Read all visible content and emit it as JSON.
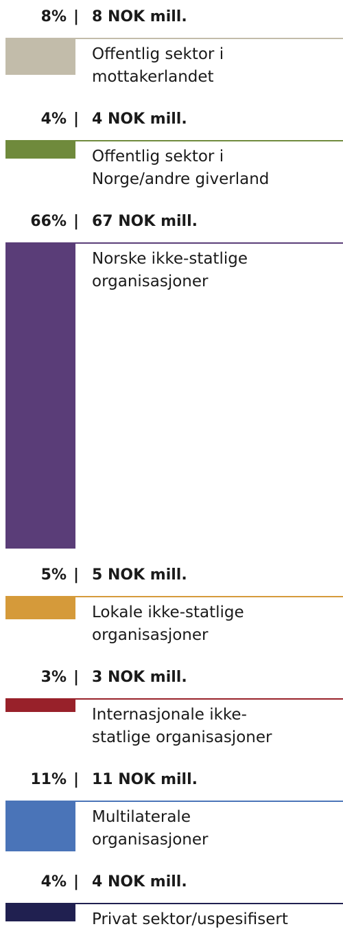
{
  "chart_data": {
    "type": "bar",
    "orientation": "vertical-stacked",
    "categories": [
      "Offentlig sektor i\nmottakerlandet",
      "Offentlig sektor i\nNorge/andre giverland",
      "Norske ikke-statlige\norganisasjoner",
      "Lokale ikke-statlige\norganisasjoner",
      "Internasjonale ikke-\nstatlige organisasjoner",
      "Multilaterale\norganisasjoner",
      "Privat sektor/uspesifisert"
    ],
    "percentages": [
      "8%",
      "4%",
      "66%",
      "5%",
      "3%",
      "11%",
      "4%"
    ],
    "percent_values": [
      8,
      4,
      66,
      5,
      3,
      11,
      4
    ],
    "amount_labels": [
      "8 NOK mill.",
      "4 NOK mill.",
      "67 NOK mill.",
      "5 NOK mill.",
      "3 NOK mill.",
      "11 NOK mill.",
      "4 NOK mill."
    ],
    "amount_values": [
      8,
      4,
      67,
      5,
      3,
      11,
      4
    ],
    "separator": "|",
    "colors": [
      "#c2bcaa",
      "#6f8a3c",
      "#5a3d78",
      "#d59a3a",
      "#98212a",
      "#4a74b8",
      "#202050"
    ]
  }
}
